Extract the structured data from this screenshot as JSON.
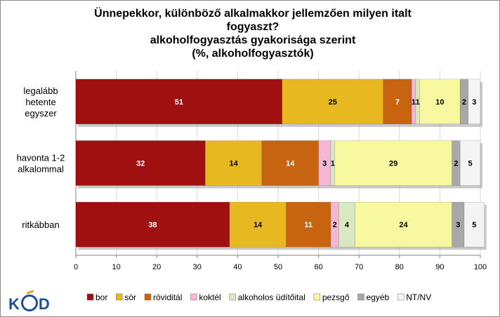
{
  "chart_data": {
    "type": "bar",
    "orientation": "horizontal",
    "stacked": true,
    "title": [
      "Ünnepekkor, különböző alkalmakkor jellemzően milyen italt",
      "fogyaszt?",
      "alkoholfogyasztás gyakorisága szerint",
      "(%, alkoholfogyasztók)"
    ],
    "categories": [
      "legalább hetente egyszer",
      "havonta 1-2 alkalommal",
      "ritkábban"
    ],
    "category_lines": [
      [
        "legalább",
        "hetente",
        "egyszer"
      ],
      [
        "havonta 1-2",
        "alkalommal"
      ],
      [
        "ritkábban"
      ]
    ],
    "series": [
      {
        "name": "bor",
        "color": "#a01010",
        "label_color": "#ffffff",
        "values": [
          51,
          32,
          38
        ]
      },
      {
        "name": "sör",
        "color": "#e8b820",
        "label_color": "#000000",
        "values": [
          25,
          14,
          14
        ]
      },
      {
        "name": "röviditál",
        "color": "#c86410",
        "label_color": "#ffffff",
        "values": [
          7,
          14,
          11
        ]
      },
      {
        "name": "koktél",
        "color": "#f4b8d4",
        "label_color": "#000000",
        "values": [
          1,
          3,
          2
        ]
      },
      {
        "name": "alkoholos üdítőital",
        "color": "#d8e8c0",
        "label_color": "#000000",
        "values": [
          1,
          1,
          4
        ]
      },
      {
        "name": "pezsgő",
        "color": "#f8f8a0",
        "label_color": "#000000",
        "values": [
          10,
          29,
          24
        ]
      },
      {
        "name": "egyéb",
        "color": "#a8a8a8",
        "label_color": "#000000",
        "values": [
          2,
          2,
          3
        ]
      },
      {
        "name": "NT/NV",
        "color": "#f4f4f4",
        "label_color": "#000000",
        "values": [
          3,
          5,
          5
        ]
      }
    ],
    "xlim": [
      0,
      100
    ],
    "xticks": [
      0,
      10,
      20,
      30,
      40,
      50,
      60,
      70,
      80,
      90,
      100
    ],
    "grid": true,
    "legend_position": "bottom"
  },
  "logo_text": "KÓD"
}
